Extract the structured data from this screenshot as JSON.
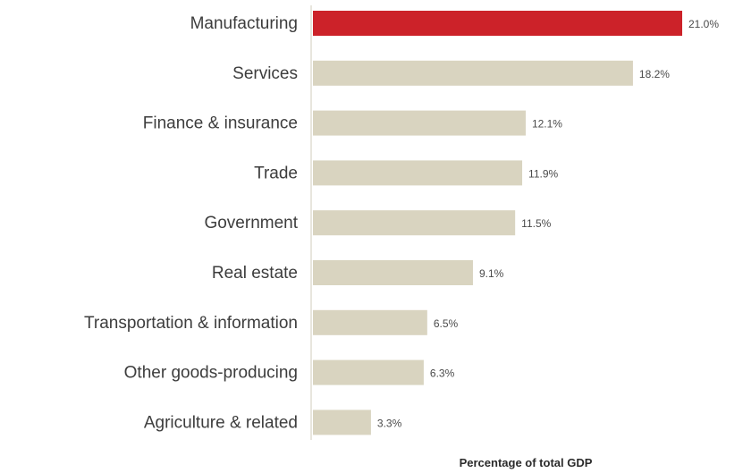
{
  "chart_data": {
    "type": "bar",
    "orientation": "horizontal",
    "categories": [
      "Manufacturing",
      "Services",
      "Finance & insurance",
      "Trade",
      "Government",
      "Real estate",
      "Transportation & information",
      "Other goods-producing",
      "Agriculture & related"
    ],
    "values": [
      21.0,
      18.2,
      12.1,
      11.9,
      11.5,
      9.1,
      6.5,
      6.3,
      3.3
    ],
    "value_labels": [
      "21.0%",
      "18.2%",
      "12.1%",
      "11.9%",
      "11.5%",
      "9.1%",
      "6.5%",
      "6.3%",
      "3.3%"
    ],
    "title": "",
    "xlabel": "Percentage of total GDP",
    "ylabel": "",
    "xlim": [
      0,
      21
    ],
    "grid": false,
    "legend": "none",
    "colors": {
      "highlight": "#cc2229",
      "bar": "#d9d4c0",
      "axis_line": "#d0ccbc"
    },
    "highlight_index": 0
  }
}
